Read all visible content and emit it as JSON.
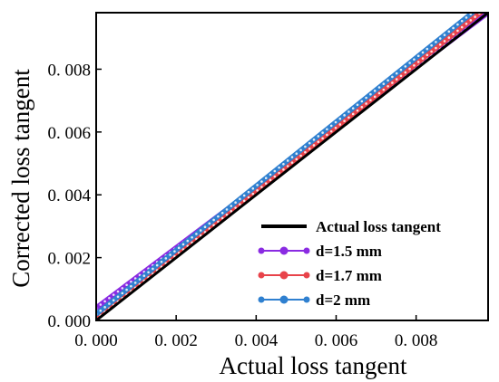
{
  "chart_data": {
    "type": "line",
    "xlabel": "Actual loss  tangent",
    "ylabel": "Corrected loss  tangent",
    "xlim": [
      0,
      0.0098
    ],
    "ylim": [
      0,
      0.0098
    ],
    "x_ticks": [
      0,
      0.002,
      0.004,
      0.006,
      0.008
    ],
    "y_ticks": [
      0,
      0.002,
      0.004,
      0.006,
      0.008
    ],
    "x_tick_labels": [
      "0. 000",
      "0. 002",
      "0. 004",
      "0. 006",
      "0. 008"
    ],
    "y_tick_labels": [
      "0. 000",
      "0. 002",
      "0. 004",
      "0. 006",
      "0. 008"
    ],
    "grid": false,
    "legend_position": "bottom-right",
    "series": [
      {
        "name": "Actual loss tangent",
        "color": "#000000",
        "style": "line",
        "x": [
          0,
          0.0098
        ],
        "y": [
          0,
          0.0098
        ]
      },
      {
        "name": "d=1.5 mm",
        "color": "#8a2be2",
        "style": "dotted-line",
        "x": [
          0,
          0.0098
        ],
        "y": [
          0.0004,
          0.0098
        ]
      },
      {
        "name": "d=1.7 mm",
        "color": "#e8434a",
        "style": "dotted-line",
        "x": [
          0,
          0.0098
        ],
        "y": [
          5e-05,
          0.01
        ]
      },
      {
        "name": "d=2 mm",
        "color": "#2f80d0",
        "style": "dotted-line",
        "x": [
          0,
          0.0098
        ],
        "y": [
          0.0002,
          0.0102
        ]
      }
    ]
  }
}
